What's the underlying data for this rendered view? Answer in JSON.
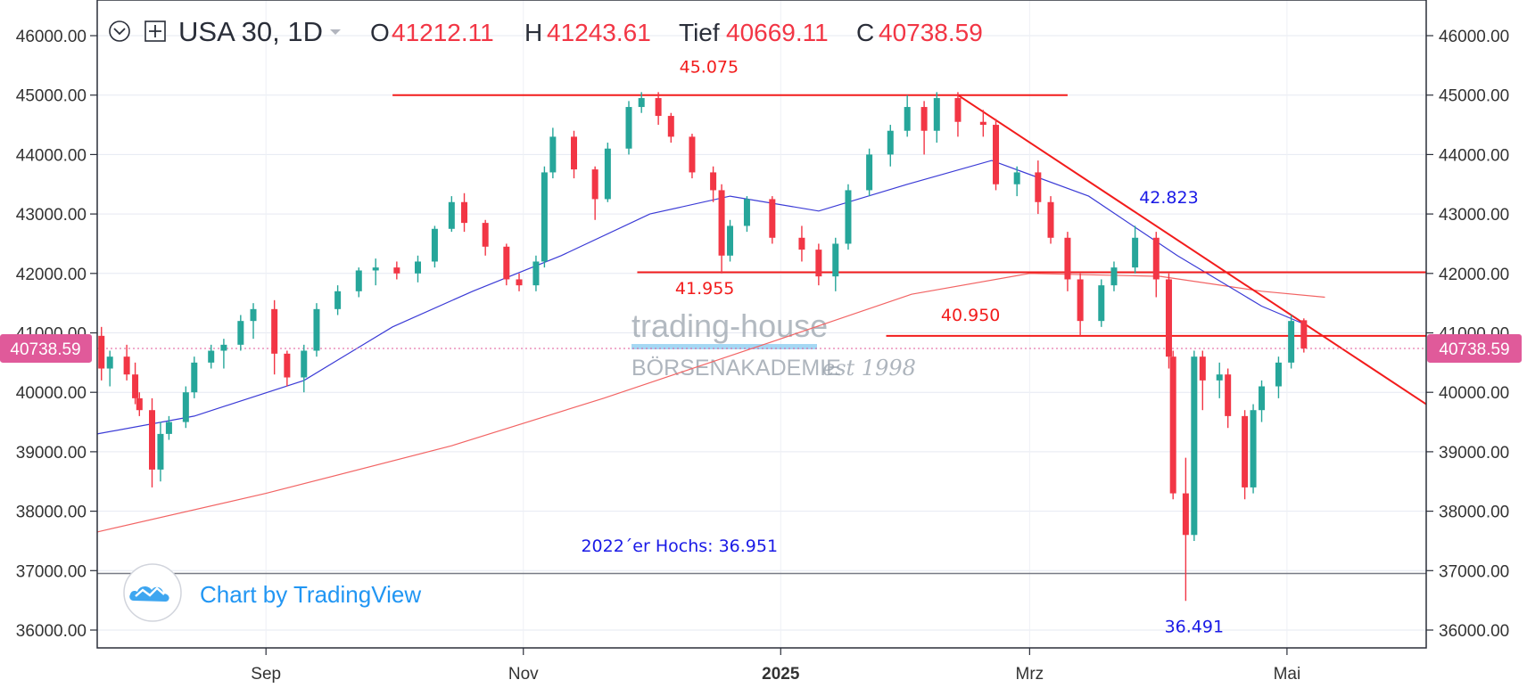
{
  "header": {
    "symbol": "USA 30, 1D",
    "o_label": "O",
    "o_value": "41212.11",
    "h_label": "H",
    "h_value": "41243.61",
    "l_label": "Tief",
    "l_value": "40669.11",
    "c_label": "C",
    "c_value": "40738.59",
    "value_color": "#f23645"
  },
  "price_tag": {
    "value": "40738.59",
    "price": 40738.59,
    "color": "#e05a9a"
  },
  "watermark": {
    "line1": "trading-house",
    "line2": "BÖRSENAKADEMIE",
    "line3": "est 1998"
  },
  "badge": {
    "text": "Chart by TradingView",
    "icon": "tradingview-cloud-icon",
    "color": "#2196f3"
  },
  "chart_data": {
    "type": "candlestick",
    "title": "",
    "xlabel": "",
    "ylabel": "",
    "ylim": [
      35700,
      46600
    ],
    "y_ticks": [
      36000,
      37000,
      38000,
      39000,
      40000,
      41000,
      42000,
      43000,
      44000,
      45000,
      46000
    ],
    "y_tick_labels": [
      "36000.00",
      "37000.00",
      "38000.00",
      "39000.00",
      "40000.00",
      "41000.00",
      "42000.00",
      "43000.00",
      "44000.00",
      "45000.00",
      "46000.00"
    ],
    "x_range": [
      "2024-07-23",
      "2025-06-03"
    ],
    "x_ticks": [
      {
        "date": "2024-09-01",
        "label": "Sep",
        "bold": false
      },
      {
        "date": "2024-11-01",
        "label": "Nov",
        "bold": false
      },
      {
        "date": "2025-01-01",
        "label": "2025",
        "bold": true
      },
      {
        "date": "2025-03-01",
        "label": "Mrz",
        "bold": false
      },
      {
        "date": "2025-05-01",
        "label": "Mai",
        "bold": false
      }
    ],
    "grid": true,
    "colors": {
      "up": "#26a69a",
      "down": "#f23645",
      "ma_fast": "#3b3bd6",
      "ma_slow": "#f26464",
      "lines": "#f21c1c"
    },
    "candles": [
      [
        "2024-07-24",
        40950,
        41100,
        40200,
        40400
      ],
      [
        "2024-07-26",
        40400,
        40700,
        40100,
        40600
      ],
      [
        "2024-07-30",
        40600,
        40800,
        40200,
        40300
      ],
      [
        "2024-08-01",
        40300,
        40500,
        39800,
        39900
      ],
      [
        "2024-08-02",
        39900,
        40000,
        39600,
        39700
      ],
      [
        "2024-08-05",
        39700,
        39900,
        38400,
        38700
      ],
      [
        "2024-08-07",
        38700,
        39500,
        38500,
        39300
      ],
      [
        "2024-08-09",
        39300,
        39600,
        39200,
        39500
      ],
      [
        "2024-08-13",
        39500,
        40100,
        39400,
        40000
      ],
      [
        "2024-08-15",
        40000,
        40600,
        39900,
        40500
      ],
      [
        "2024-08-19",
        40500,
        40800,
        40400,
        40700
      ],
      [
        "2024-08-22",
        40700,
        40900,
        40400,
        40800
      ],
      [
        "2024-08-26",
        40800,
        41300,
        40700,
        41200
      ],
      [
        "2024-08-29",
        41200,
        41500,
        40900,
        41400
      ],
      [
        "2024-09-03",
        41400,
        41550,
        40300,
        40650
      ],
      [
        "2024-09-06",
        40650,
        40700,
        40100,
        40250
      ],
      [
        "2024-09-10",
        40250,
        40800,
        40000,
        40700
      ],
      [
        "2024-09-13",
        40700,
        41500,
        40600,
        41400
      ],
      [
        "2024-09-18",
        41400,
        41800,
        41300,
        41700
      ],
      [
        "2024-09-23",
        41700,
        42100,
        41600,
        42050
      ],
      [
        "2024-09-27",
        42050,
        42250,
        41800,
        42100
      ],
      [
        "2024-10-02",
        42100,
        42200,
        41900,
        42000
      ],
      [
        "2024-10-07",
        42000,
        42300,
        41850,
        42200
      ],
      [
        "2024-10-11",
        42200,
        42800,
        42100,
        42750
      ],
      [
        "2024-10-15",
        42750,
        43300,
        42700,
        43200
      ],
      [
        "2024-10-18",
        43200,
        43350,
        42700,
        42850
      ],
      [
        "2024-10-23",
        42850,
        42900,
        42300,
        42450
      ],
      [
        "2024-10-28",
        42450,
        42500,
        41800,
        41900
      ],
      [
        "2024-10-31",
        41900,
        42000,
        41700,
        41800
      ],
      [
        "2024-11-04",
        41800,
        42300,
        41700,
        42200
      ],
      [
        "2024-11-06",
        42200,
        43800,
        42100,
        43700
      ],
      [
        "2024-11-08",
        43700,
        44450,
        43600,
        44300
      ],
      [
        "2024-11-13",
        44300,
        44400,
        43600,
        43750
      ],
      [
        "2024-11-18",
        43750,
        43800,
        42900,
        43250
      ],
      [
        "2024-11-21",
        43250,
        44200,
        43200,
        44100
      ],
      [
        "2024-11-26",
        44100,
        44900,
        44000,
        44800
      ],
      [
        "2024-11-29",
        44800,
        45050,
        44700,
        44950
      ],
      [
        "2024-12-03",
        44950,
        45050,
        44500,
        44650
      ],
      [
        "2024-12-06",
        44650,
        44700,
        44200,
        44300
      ],
      [
        "2024-12-11",
        44300,
        44350,
        43600,
        43700
      ],
      [
        "2024-12-16",
        43700,
        43800,
        43200,
        43400
      ],
      [
        "2024-12-18",
        43400,
        43500,
        42000,
        42300
      ],
      [
        "2024-12-20",
        42300,
        42900,
        42200,
        42800
      ],
      [
        "2024-12-24",
        42800,
        43300,
        42700,
        43250
      ],
      [
        "2024-12-30",
        43250,
        43300,
        42500,
        42600
      ],
      [
        "2025-01-06",
        42600,
        42800,
        42200,
        42400
      ],
      [
        "2025-01-10",
        42400,
        42500,
        41800,
        41950
      ],
      [
        "2025-01-14",
        41950,
        42600,
        41700,
        42500
      ],
      [
        "2025-01-17",
        42500,
        43500,
        42400,
        43400
      ],
      [
        "2025-01-22",
        43400,
        44100,
        43300,
        44000
      ],
      [
        "2025-01-27",
        44000,
        44500,
        43800,
        44400
      ],
      [
        "2025-01-31",
        44400,
        45000,
        44300,
        44800
      ],
      [
        "2025-02-04",
        44800,
        44900,
        44000,
        44400
      ],
      [
        "2025-02-07",
        44400,
        45050,
        44200,
        44950
      ],
      [
        "2025-02-12",
        44950,
        45050,
        44300,
        44550
      ],
      [
        "2025-02-18",
        44550,
        44750,
        44300,
        44500
      ],
      [
        "2025-02-21",
        44500,
        44600,
        43400,
        43500
      ],
      [
        "2025-02-26",
        43500,
        43800,
        43300,
        43700
      ],
      [
        "2025-03-03",
        43700,
        43900,
        43000,
        43200
      ],
      [
        "2025-03-06",
        43200,
        43300,
        42500,
        42600
      ],
      [
        "2025-03-10",
        42600,
        42700,
        41700,
        41900
      ],
      [
        "2025-03-13",
        41900,
        42000,
        40950,
        41200
      ],
      [
        "2025-03-18",
        41200,
        41900,
        41100,
        41800
      ],
      [
        "2025-03-21",
        41800,
        42200,
        41700,
        42100
      ],
      [
        "2025-03-26",
        42100,
        42800,
        42000,
        42600
      ],
      [
        "2025-03-31",
        42600,
        42700,
        41600,
        41900
      ],
      [
        "2025-04-03",
        41900,
        42000,
        40400,
        40600
      ],
      [
        "2025-04-04",
        40600,
        40700,
        38200,
        38300
      ],
      [
        "2025-04-07",
        38300,
        38900,
        36491,
        37600
      ],
      [
        "2025-04-09",
        37600,
        40700,
        37500,
        40600
      ],
      [
        "2025-04-11",
        40600,
        40700,
        39700,
        40200
      ],
      [
        "2025-04-15",
        40200,
        40500,
        39900,
        40300
      ],
      [
        "2025-04-17",
        40300,
        40400,
        39400,
        39600
      ],
      [
        "2025-04-21",
        39600,
        39700,
        38200,
        38400
      ],
      [
        "2025-04-23",
        38400,
        39800,
        38300,
        39700
      ],
      [
        "2025-04-25",
        39700,
        40200,
        39500,
        40100
      ],
      [
        "2025-04-29",
        40100,
        40600,
        39900,
        40500
      ],
      [
        "2025-05-02",
        40500,
        41300,
        40400,
        41200
      ],
      [
        "2025-05-05",
        41212.11,
        41243.61,
        40669.11,
        40738.59
      ]
    ],
    "ma_fast": [
      [
        "2024-07-23",
        39300
      ],
      [
        "2024-08-15",
        39600
      ],
      [
        "2024-09-10",
        40200
      ],
      [
        "2024-10-01",
        41100
      ],
      [
        "2024-10-20",
        41700
      ],
      [
        "2024-11-10",
        42300
      ],
      [
        "2024-12-01",
        43000
      ],
      [
        "2024-12-20",
        43300
      ],
      [
        "2025-01-10",
        43050
      ],
      [
        "2025-01-31",
        43500
      ],
      [
        "2025-02-20",
        43900
      ],
      [
        "2025-03-15",
        43300
      ],
      [
        "2025-04-05",
        42300
      ],
      [
        "2025-04-25",
        41450
      ],
      [
        "2025-05-05",
        41150
      ]
    ],
    "ma_slow": [
      [
        "2024-07-23",
        37650
      ],
      [
        "2024-09-01",
        38300
      ],
      [
        "2024-10-15",
        39100
      ],
      [
        "2024-11-20",
        39900
      ],
      [
        "2025-01-01",
        40900
      ],
      [
        "2025-02-01",
        41650
      ],
      [
        "2025-03-01",
        42000
      ],
      [
        "2025-04-01",
        41950
      ],
      [
        "2025-04-25",
        41700
      ],
      [
        "2025-05-10",
        41600
      ]
    ],
    "hlines": [
      {
        "price": 45000,
        "from": "2024-10-01",
        "to": "2025-03-10"
      },
      {
        "price": 42020,
        "from": "2024-11-28",
        "to": "2025-06-03"
      },
      {
        "price": 40950,
        "from": "2025-01-26",
        "to": "2025-06-03"
      }
    ],
    "hline_gray": {
      "price": 36951
    },
    "trendline": {
      "from": [
        "2025-02-12",
        45000
      ],
      "to": [
        "2025-06-03",
        39800
      ]
    },
    "annotations": [
      {
        "text": "45.075",
        "date": "2024-12-15",
        "price": 45380,
        "color": "#f21c1c"
      },
      {
        "text": "41.955",
        "date": "2024-12-14",
        "price": 41650,
        "color": "#f21c1c"
      },
      {
        "text": "40.950",
        "date": "2025-02-15",
        "price": 41200,
        "color": "#f21c1c"
      },
      {
        "text": "42.823",
        "date": "2025-04-03",
        "price": 43180,
        "color": "#1a1ae6"
      },
      {
        "text": "2022´er Hochs: 36.951",
        "date": "2024-12-08",
        "price": 37320,
        "color": "#1a1ae6"
      },
      {
        "text": "36.491",
        "date": "2025-04-09",
        "price": 35960,
        "color": "#1a1ae6"
      }
    ]
  }
}
